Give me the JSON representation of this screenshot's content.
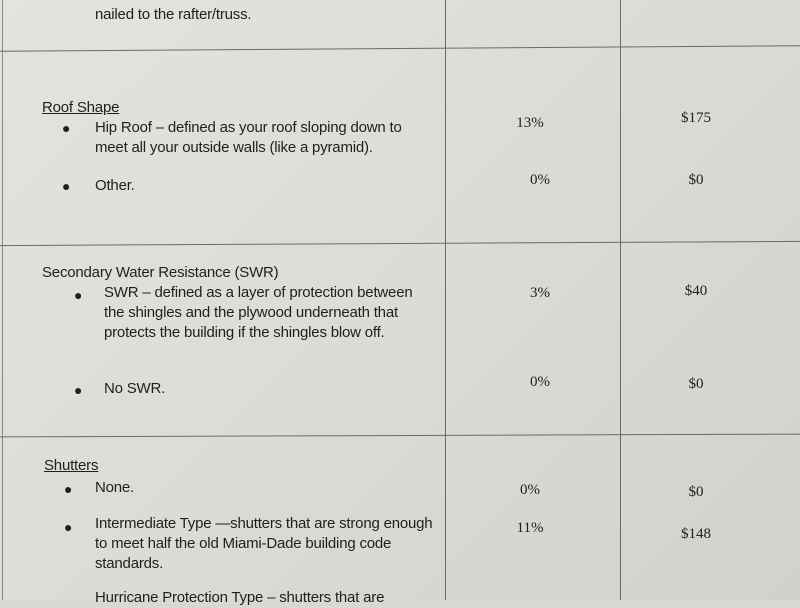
{
  "top_fragment": "nailed to the rafter/truss.",
  "sections": [
    {
      "heading": "Roof Shape",
      "items": [
        {
          "text": "Hip Roof – defined as your roof sloping down to meet all your outside walls (like a pyramid).",
          "percent": "13%",
          "amount": "$175"
        },
        {
          "text": "Other.",
          "percent": "0%",
          "amount": "$0"
        }
      ]
    },
    {
      "heading": "Secondary Water Resistance (SWR)",
      "items": [
        {
          "text": "SWR – defined as a layer of protection between the shingles and the plywood underneath that protects the building if the shingles blow off.",
          "percent": "3%",
          "amount": "$40"
        },
        {
          "text": "No SWR.",
          "percent": "0%",
          "amount": "$0"
        }
      ]
    },
    {
      "heading": "Shutters",
      "items": [
        {
          "text": "None.",
          "percent": "0%",
          "amount": "$0"
        },
        {
          "text": "Intermediate Type —shutters that are strong enough to meet half the old Miami-Dade building code standards.",
          "percent": "11%",
          "amount": "$148"
        },
        {
          "text": "Hurricane Protection Type – shutters that are"
        }
      ]
    }
  ]
}
